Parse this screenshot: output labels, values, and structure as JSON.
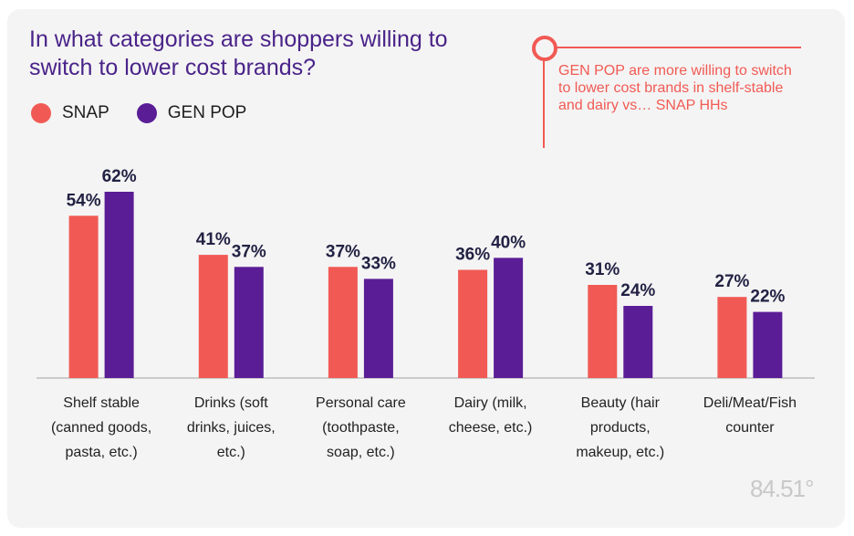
{
  "title": "In what categories are shoppers willing to switch to lower cost brands?",
  "callout": "GEN POP are more willing to switch to lower cost brands in shelf-stable and dairy vs… SNAP HHs",
  "logo": "84.51°",
  "colors": {
    "snap": "#f15a54",
    "genpop": "#5a1d96",
    "accent": "#f15a54",
    "title": "#4a2389"
  },
  "chart_data": {
    "type": "bar",
    "title": "In what categories are shoppers willing to switch to lower cost brands?",
    "categories": [
      [
        "Shelf stable",
        "(canned goods,",
        "pasta, etc.)"
      ],
      [
        "Drinks (soft",
        "drinks, juices,",
        "etc.)"
      ],
      [
        "Personal care",
        "(toothpaste,",
        "soap, etc.)"
      ],
      [
        "Dairy (milk,",
        "cheese, etc.)"
      ],
      [
        "Beauty (hair",
        "products,",
        "makeup, etc.)"
      ],
      [
        "Deli/Meat/Fish",
        "counter"
      ]
    ],
    "series": [
      {
        "name": "SNAP",
        "values": [
          54,
          41,
          37,
          36,
          31,
          27
        ],
        "labels": [
          "54%",
          "41%",
          "37%",
          "36%",
          "31%",
          "27%"
        ]
      },
      {
        "name": "GEN POP",
        "values": [
          62,
          37,
          33,
          40,
          24,
          22
        ],
        "labels": [
          "62%",
          "37%",
          "33%",
          "40%",
          "24%",
          "22%"
        ]
      }
    ],
    "ylim": [
      0,
      62
    ],
    "grid": false,
    "legend": "top-left",
    "unit": "%"
  }
}
